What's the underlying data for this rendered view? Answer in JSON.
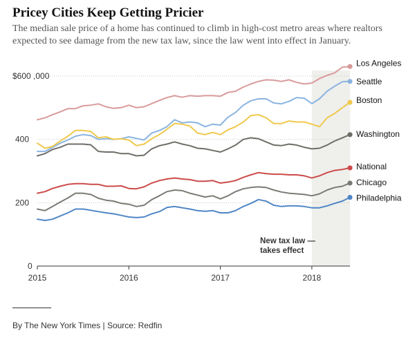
{
  "header": {
    "title": "Pricey Cities Keep Getting Pricier",
    "subtitle": "The median sale price of a home has continued to climb in high-cost metro areas where realtors expected to see damage from the new tax law, since the law went into effect in January."
  },
  "footer": {
    "credit": "By The New York Times | Source: Redfin"
  },
  "chart_data": {
    "type": "line",
    "title": "Pricey Cities Keep Getting Pricier",
    "xlabel": "",
    "ylabel": "",
    "x_ticks": [
      {
        "value": 2015,
        "label": "2015"
      },
      {
        "value": 2016,
        "label": "2016"
      },
      {
        "value": 2017,
        "label": "2017"
      },
      {
        "value": 2018,
        "label": "2018"
      }
    ],
    "y_ticks": [
      {
        "value": 0,
        "label": "0"
      },
      {
        "value": 200,
        "label": "200"
      },
      {
        "value": 400,
        "label": "400"
      },
      {
        "value": 600,
        "label": "$600 ,000"
      }
    ],
    "xlim": [
      2015,
      2018.4167
    ],
    "ylim": [
      0,
      600
    ],
    "grid": "horizontal dotted",
    "legend": "direct labels at right end of lines",
    "annotation": {
      "lines": [
        "New tax law —",
        "takes effect"
      ],
      "shaded_from": 2018
    },
    "x": [
      "2015-01",
      "2015-02",
      "2015-03",
      "2015-04",
      "2015-05",
      "2015-06",
      "2015-07",
      "2015-08",
      "2015-09",
      "2015-10",
      "2015-11",
      "2015-12",
      "2016-01",
      "2016-02",
      "2016-03",
      "2016-04",
      "2016-05",
      "2016-06",
      "2016-07",
      "2016-08",
      "2016-09",
      "2016-10",
      "2016-11",
      "2016-12",
      "2017-01",
      "2017-02",
      "2017-03",
      "2017-04",
      "2017-05",
      "2017-06",
      "2017-07",
      "2017-08",
      "2017-09",
      "2017-10",
      "2017-11",
      "2017-12",
      "2018-01",
      "2018-02",
      "2018-03",
      "2018-04",
      "2018-05",
      "2018-06"
    ],
    "series": [
      {
        "name": "Los Angeles",
        "color": "#d99a9a",
        "values": [
          462,
          468,
          478,
          487,
          497,
          497,
          506,
          508,
          512,
          503,
          498,
          500,
          508,
          500,
          503,
          513,
          523,
          532,
          538,
          533,
          538,
          536,
          538,
          538,
          536,
          548,
          552,
          565,
          575,
          583,
          588,
          587,
          583,
          588,
          580,
          575,
          578,
          592,
          602,
          610,
          628,
          630
        ]
      },
      {
        "name": "Seattle",
        "color": "#8ab4e0",
        "values": [
          362,
          362,
          375,
          388,
          398,
          410,
          415,
          412,
          400,
          402,
          400,
          402,
          408,
          403,
          398,
          420,
          428,
          440,
          462,
          452,
          455,
          452,
          440,
          448,
          445,
          470,
          485,
          508,
          522,
          528,
          528,
          515,
          512,
          520,
          532,
          530,
          513,
          528,
          552,
          568,
          582,
          583
        ]
      },
      {
        "name": "Boston",
        "color": "#efc94c",
        "values": [
          388,
          372,
          378,
          395,
          410,
          428,
          428,
          425,
          405,
          408,
          400,
          402,
          398,
          380,
          385,
          402,
          415,
          432,
          450,
          448,
          442,
          420,
          415,
          422,
          415,
          430,
          440,
          455,
          475,
          478,
          468,
          450,
          450,
          458,
          455,
          455,
          448,
          440,
          468,
          482,
          500,
          517
        ]
      },
      {
        "name": "Washington",
        "color": "#6e6e68",
        "values": [
          348,
          355,
          368,
          375,
          385,
          385,
          385,
          383,
          362,
          360,
          360,
          355,
          355,
          348,
          350,
          370,
          380,
          385,
          392,
          385,
          380,
          372,
          370,
          365,
          360,
          370,
          382,
          400,
          405,
          402,
          392,
          382,
          380,
          385,
          382,
          375,
          370,
          372,
          382,
          395,
          405,
          415
        ]
      },
      {
        "name": "National",
        "color": "#cc4a4a",
        "values": [
          230,
          235,
          245,
          252,
          258,
          260,
          260,
          258,
          258,
          252,
          252,
          253,
          245,
          244,
          250,
          262,
          270,
          275,
          278,
          275,
          273,
          268,
          268,
          270,
          262,
          265,
          270,
          280,
          288,
          295,
          292,
          290,
          290,
          288,
          288,
          285,
          278,
          285,
          295,
          302,
          305,
          310
        ]
      },
      {
        "name": "Chicago",
        "color": "#7a7a75",
        "values": [
          180,
          175,
          188,
          202,
          215,
          230,
          230,
          226,
          214,
          208,
          205,
          198,
          195,
          188,
          192,
          210,
          222,
          235,
          240,
          238,
          230,
          224,
          218,
          222,
          212,
          222,
          235,
          244,
          248,
          250,
          248,
          240,
          234,
          230,
          228,
          226,
          222,
          228,
          240,
          248,
          252,
          262
        ]
      },
      {
        "name": "Philadelphia",
        "color": "#4f86c6",
        "values": [
          148,
          144,
          148,
          158,
          168,
          180,
          180,
          176,
          172,
          168,
          165,
          160,
          155,
          153,
          155,
          165,
          172,
          185,
          188,
          184,
          180,
          175,
          173,
          175,
          168,
          168,
          175,
          188,
          198,
          210,
          205,
          192,
          188,
          190,
          190,
          188,
          184,
          184,
          190,
          198,
          205,
          217
        ]
      }
    ]
  }
}
